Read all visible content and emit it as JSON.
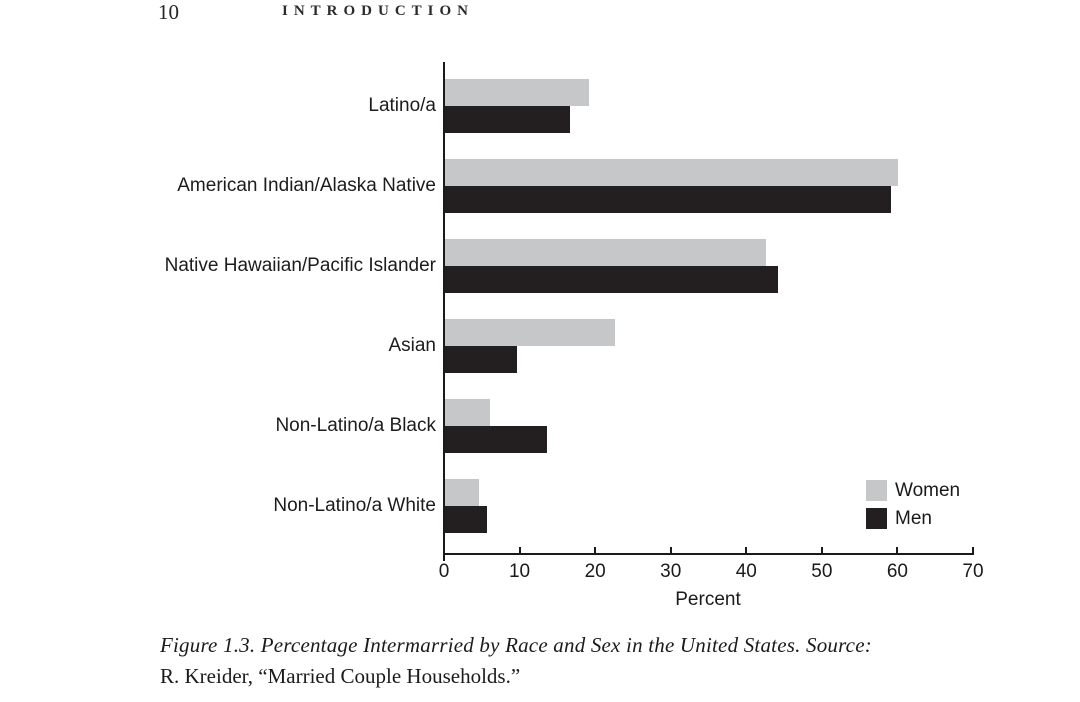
{
  "page": {
    "page_number": "10",
    "running_head": "INTRODUCTION"
  },
  "chart_data": {
    "type": "bar",
    "orientation": "horizontal",
    "title": "",
    "categories": [
      "Latino/a",
      "American Indian/Alaska Native",
      "Native Hawaiian/Pacific Islander",
      "Asian",
      "Non-Latino/a Black",
      "Non-Latino/a White"
    ],
    "series": [
      {
        "name": "Women",
        "color": "#c6c7c8",
        "values": [
          19,
          60,
          42.5,
          22.5,
          6,
          4.5
        ]
      },
      {
        "name": "Men",
        "color": "#231f20",
        "values": [
          16.5,
          59,
          44,
          9.5,
          13.5,
          5.5
        ]
      }
    ],
    "xlabel": "Percent",
    "xlim": [
      0,
      70
    ],
    "xticks": [
      0,
      10,
      20,
      30,
      40,
      50,
      60,
      70
    ],
    "grid": false,
    "legend_position": "bottom-right",
    "bar_order_per_category": [
      "Women",
      "Men"
    ]
  },
  "caption": {
    "line1": "Figure 1.3.  Percentage Intermarried by Race and Sex in the United States. Source:",
    "line2": "R. Kreider, “Married Couple Households.”"
  }
}
